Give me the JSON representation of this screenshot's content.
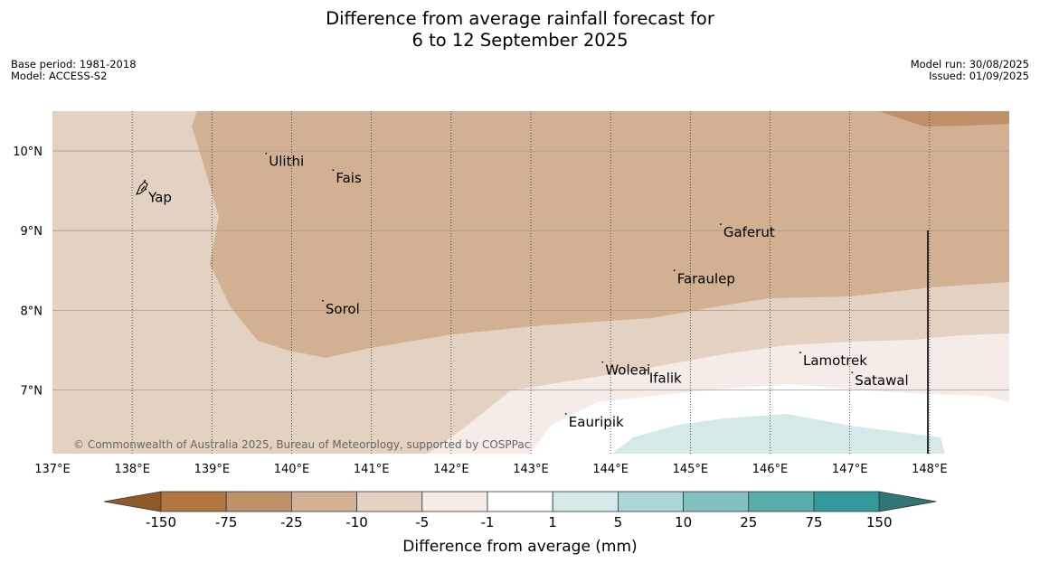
{
  "title": {
    "line1": "Difference from average rainfall forecast for",
    "line2": "6 to 12 September 2025"
  },
  "meta": {
    "base_period": "Base period: 1981-2018",
    "model": "Model: ACCESS-S2",
    "model_run": "Model run: 30/08/2025",
    "issued": "Issued: 01/09/2025"
  },
  "map": {
    "lat_ticks": [
      "10°N",
      "9°N",
      "8°N",
      "7°N"
    ],
    "lon_ticks": [
      "137°E",
      "138°E",
      "139°E",
      "140°E",
      "141°E",
      "142°E",
      "143°E",
      "144°E",
      "145°E",
      "146°E",
      "147°E",
      "148°E"
    ],
    "places": [
      {
        "name": "Yap",
        "lon": 138.17,
        "lat": 9.52
      },
      {
        "name": "Ulithi",
        "lon": 139.68,
        "lat": 9.97
      },
      {
        "name": "Fais",
        "lon": 140.52,
        "lat": 9.76
      },
      {
        "name": "Gaferut",
        "lon": 145.38,
        "lat": 9.08
      },
      {
        "name": "Faraulep",
        "lon": 144.8,
        "lat": 8.5
      },
      {
        "name": "Sorol",
        "lon": 140.39,
        "lat": 8.12
      },
      {
        "name": "Woleai",
        "lon": 143.9,
        "lat": 7.35
      },
      {
        "name": "Ifalik",
        "lon": 144.45,
        "lat": 7.25
      },
      {
        "name": "Lamotrek",
        "lon": 146.38,
        "lat": 7.47
      },
      {
        "name": "Satawal",
        "lon": 147.03,
        "lat": 7.22
      },
      {
        "name": "Eauripik",
        "lon": 143.44,
        "lat": 6.7
      }
    ],
    "credit": "© Commonwealth of Australia 2025, Bureau of Meteorology, supported by COSPPac"
  },
  "colorbar": {
    "title": "Difference from average (mm)",
    "labels": [
      "-150",
      "-75",
      "-25",
      "-10",
      "-5",
      "-1",
      "1",
      "5",
      "10",
      "25",
      "75",
      "150"
    ],
    "colors": [
      "#8c5a28",
      "#b07840",
      "#c09068",
      "#d1b192",
      "#e3d1c1",
      "#f5ece7",
      "#ffffff",
      "#d5e9e8",
      "#acd6d6",
      "#82c1c0",
      "#5aadad",
      "#34999a",
      "#2e7775"
    ]
  }
}
